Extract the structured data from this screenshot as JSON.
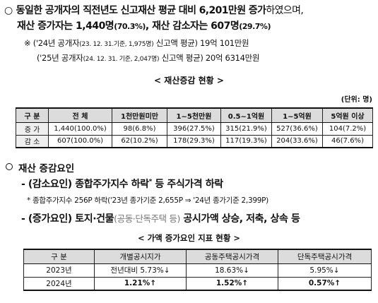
{
  "summary": {
    "line1_bullet": "○",
    "line1_bold": "동일한 공개자의 직전년도 신고재산 평균 대비 6,201만원 증가",
    "line1_tail": "하였으며,",
    "line2_a": "재산 증가자는 1,440명",
    "line2_b": "(70.3%)",
    "line2_c": ", 재산 감소자는 607명",
    "line2_d": "(29.7%)"
  },
  "notes": {
    "mark": "※",
    "n1_pre": "('24년 공개자",
    "n1_small": "(23. 12. 31.기준, 1,975명)",
    "n1_post": " 신고액 평균) 19억 101만원",
    "n2_pre": "('25년 공개자",
    "n2_small": "(24. 12. 31. 기준, 2,047명)",
    "n2_post": " 신고액 평균) 20억 6314만원"
  },
  "table1": {
    "title": "< 재산증감 현황 >",
    "unit": "(단위: 명)",
    "headers": [
      "구 분",
      "전 체",
      "1천만원미만",
      "1~5천만원",
      "0.5~1억원",
      "1~5억원",
      "5억원 이상"
    ],
    "rows": [
      [
        "증 가",
        "1,440(100.0%)",
        "98(6.8%)",
        "396(27.5%)",
        "315(21.9%)",
        "527(36.6%)",
        "104(7.2%)"
      ],
      [
        "감 소",
        "607(100.0%)",
        "62(10.2%)",
        "178(29.3%)",
        "117(19.3%)",
        "204(33.6%)",
        "46(7.6%)"
      ]
    ]
  },
  "section2": {
    "title": "재산 증감요인",
    "dec_line": "- (감소요인) 종합주가지수 하락",
    "dec_star": "*",
    "dec_tail": " 등 주식가격 하락",
    "dec_note": "* 종합주가지수 256P 하락('23년 종가기준 2,655P ⇒ '24년 종가기준 2,399P)",
    "inc_a": "- (증가요인) 토지·건물",
    "inc_b": "(공동·단독주택 등)",
    "inc_c": " 공시가액 상승, 저축, 상속 등"
  },
  "table2": {
    "title": "< 가액 증가요인 지표 현황 >",
    "headers": [
      "구 분",
      "개별공시지가",
      "공동주택공시가격",
      "단독주택공시가격"
    ],
    "rows": [
      [
        "2023년",
        "전년대비 5.73%↓",
        "18.63%↓",
        "5.95%↓"
      ],
      [
        "2024년",
        "1.21%↑",
        "1.52%↑",
        "0.57%↑"
      ]
    ]
  }
}
